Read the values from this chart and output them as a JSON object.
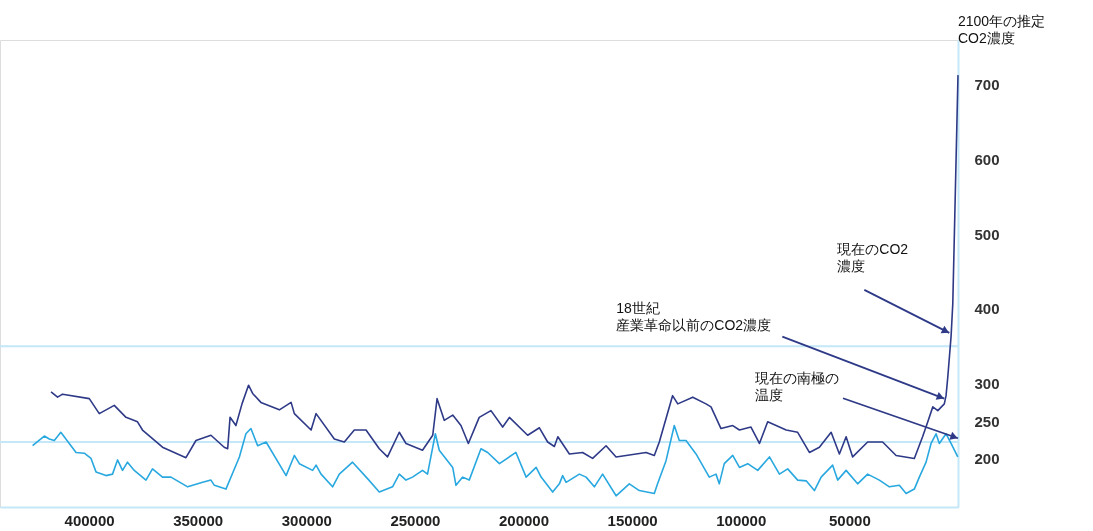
{
  "chart_data": {
    "type": "line",
    "annotations": [
      {
        "text": "2100年の推定CO2濃度",
        "x": 0,
        "y": 713
      },
      {
        "text": "現在のCO2濃度",
        "x": 4000,
        "y": 368
      },
      {
        "text": "18世紀産業革命以前のCO2濃度",
        "x": 6300,
        "y": 280
      },
      {
        "text": "現在の南極の温度",
        "x": 0,
        "y": 227
      }
    ],
    "xlim": [
      441000,
      0
    ],
    "xticks": [
      400000,
      350000,
      300000,
      250000,
      200000,
      150000,
      100000,
      50000
    ],
    "ylim": [
      135,
      760
    ],
    "yticks": [
      200,
      250,
      300,
      400,
      500,
      600,
      700
    ],
    "grid": false,
    "legend": false,
    "ref_lines": [
      {
        "axis": "y",
        "value": 350,
        "color": "#c4e8f8"
      },
      {
        "axis": "y",
        "value": 222,
        "color": "#c4e8f8"
      }
    ],
    "series": [
      {
        "color": "#2e3a87",
        "x": [
          417500,
          414500,
          412200,
          399900,
          395300,
          388400,
          383000,
          377700,
          375400,
          366200,
          355400,
          350800,
          343900,
          337800,
          336200,
          335100,
          332400,
          329600,
          326600,
          324700,
          320900,
          312400,
          307000,
          305500,
          297800,
          295500,
          287100,
          282500,
          277900,
          272500,
          266400,
          262600,
          257200,
          254100,
          246500,
          241800,
          239800,
          236500,
          232600,
          228800,
          225400,
          220400,
          215000,
          209600,
          206500,
          198100,
          192700,
          188900,
          185800,
          184200,
          178900,
          172800,
          168200,
          162000,
          157400,
          143600,
          139800,
          137500,
          131400,
          129000,
          122100,
          116000,
          113700,
          109100,
          103700,
          100600,
          95300,
          91400,
          87600,
          79100,
          73800,
          68400,
          63800,
          58400,
          54600,
          51500,
          48500,
          41600,
          34700,
          28500,
          20100,
          16300,
          13900,
          11600,
          9300,
          6300,
          5500,
          4700,
          3200,
          2400,
          0
        ],
        "values": [
          289,
          282,
          286,
          280,
          260,
          271,
          255,
          249,
          238,
          215,
          201,
          224,
          231,
          215,
          213,
          255,
          244,
          273,
          298,
          287,
          275,
          265,
          275,
          260,
          238,
          260,
          226,
          222,
          238,
          238,
          213,
          202,
          235,
          220,
          211,
          231,
          280,
          251,
          258,
          244,
          220,
          255,
          264,
          242,
          255,
          231,
          241,
          222,
          216,
          229,
          206,
          208,
          200,
          217,
          202,
          208,
          204,
          222,
          284,
          273,
          282,
          273,
          269,
          240,
          244,
          238,
          242,
          220,
          249,
          238,
          235,
          208,
          215,
          235,
          206,
          229,
          202,
          222,
          222,
          204,
          200,
          229,
          249,
          269,
          264,
          273,
          284,
          309,
          363,
          407,
          713
        ]
      },
      {
        "color": "#29a8e0",
        "x": [
          426000,
          420600,
          418300,
          416000,
          413000,
          406000,
          402200,
          399100,
          396800,
          392200,
          389200,
          386900,
          384600,
          382300,
          379200,
          373800,
          370800,
          366200,
          362300,
          354600,
          347700,
          343900,
          342300,
          337000,
          330800,
          327800,
          325500,
          322400,
          318500,
          309300,
          305500,
          303200,
          297100,
          295500,
          293200,
          287900,
          284800,
          278700,
          271800,
          266400,
          260300,
          257200,
          254100,
          251100,
          246500,
          244200,
          240600,
          238800,
          232600,
          231100,
          228000,
          225000,
          219600,
          216500,
          211100,
          203500,
          198800,
          194200,
          191900,
          186600,
          183500,
          182000,
          180400,
          174300,
          171200,
          167400,
          163600,
          157400,
          151300,
          146700,
          139800,
          138300,
          134400,
          130600,
          128300,
          125200,
          120600,
          114500,
          111400,
          109900,
          107600,
          103700,
          100600,
          96800,
          92200,
          86800,
          82200,
          78400,
          73800,
          69900,
          66100,
          63000,
          57700,
          55400,
          51500,
          46200,
          41600,
          36200,
          31600,
          27000,
          23900,
          20100,
          17800,
          14700,
          12400,
          10100,
          8600,
          5500,
          3200,
          100
        ],
        "values": [
          217,
          230,
          226,
          224,
          235,
          208,
          207,
          200,
          182,
          177,
          179,
          198,
          184,
          195,
          184,
          171,
          186,
          175,
          175,
          162,
          168,
          171,
          164,
          159,
          202,
          233,
          240,
          217,
          222,
          177,
          204,
          193,
          184,
          191,
          179,
          162,
          179,
          195,
          173,
          155,
          162,
          179,
          171,
          175,
          184,
          179,
          233,
          211,
          188,
          164,
          175,
          171,
          213,
          208,
          193,
          208,
          175,
          188,
          175,
          155,
          166,
          177,
          168,
          179,
          175,
          162,
          179,
          150,
          166,
          157,
          153,
          166,
          197,
          244,
          224,
          224,
          206,
          175,
          179,
          166,
          193,
          204,
          188,
          193,
          184,
          202,
          179,
          186,
          171,
          170,
          157,
          175,
          191,
          171,
          184,
          166,
          179,
          171,
          162,
          164,
          153,
          159,
          175,
          195,
          220,
          233,
          220,
          233,
          220,
          202
        ]
      }
    ]
  }
}
